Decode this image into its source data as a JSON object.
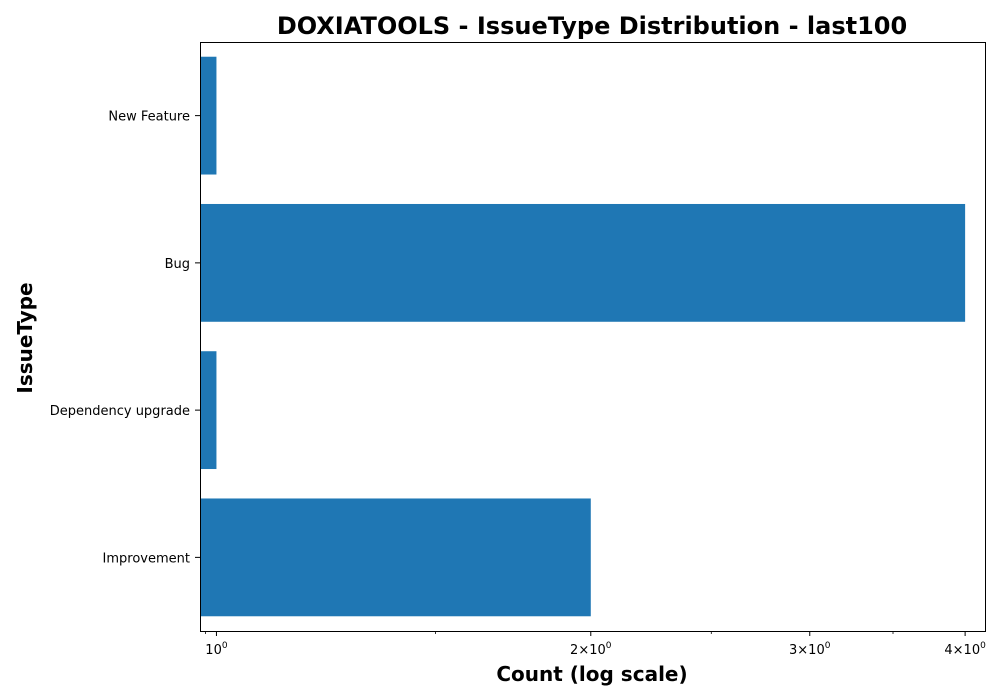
{
  "chart_data": {
    "type": "bar",
    "orientation": "horizontal",
    "title": "DOXIATOOLS - IssueType Distribution - last100",
    "xlabel": "Count (log scale)",
    "ylabel": "IssueType",
    "x_scale": "log",
    "xlim": [
      0.97,
      4.15
    ],
    "categories": [
      "New Feature",
      "Bug",
      "Dependency upgrade",
      "Improvement"
    ],
    "values": [
      1,
      4,
      1,
      2
    ],
    "x_ticks": [
      {
        "value": 1,
        "label_base": "10",
        "label_exp": "0"
      },
      {
        "value": 2,
        "label_base": "2×10",
        "label_exp": "0"
      },
      {
        "value": 3,
        "label_base": "3×10",
        "label_exp": "0"
      },
      {
        "value": 4,
        "label_base": "4×10",
        "label_exp": "0"
      }
    ],
    "bar_color": "#1f77b4",
    "grid": false,
    "legend": "none"
  }
}
